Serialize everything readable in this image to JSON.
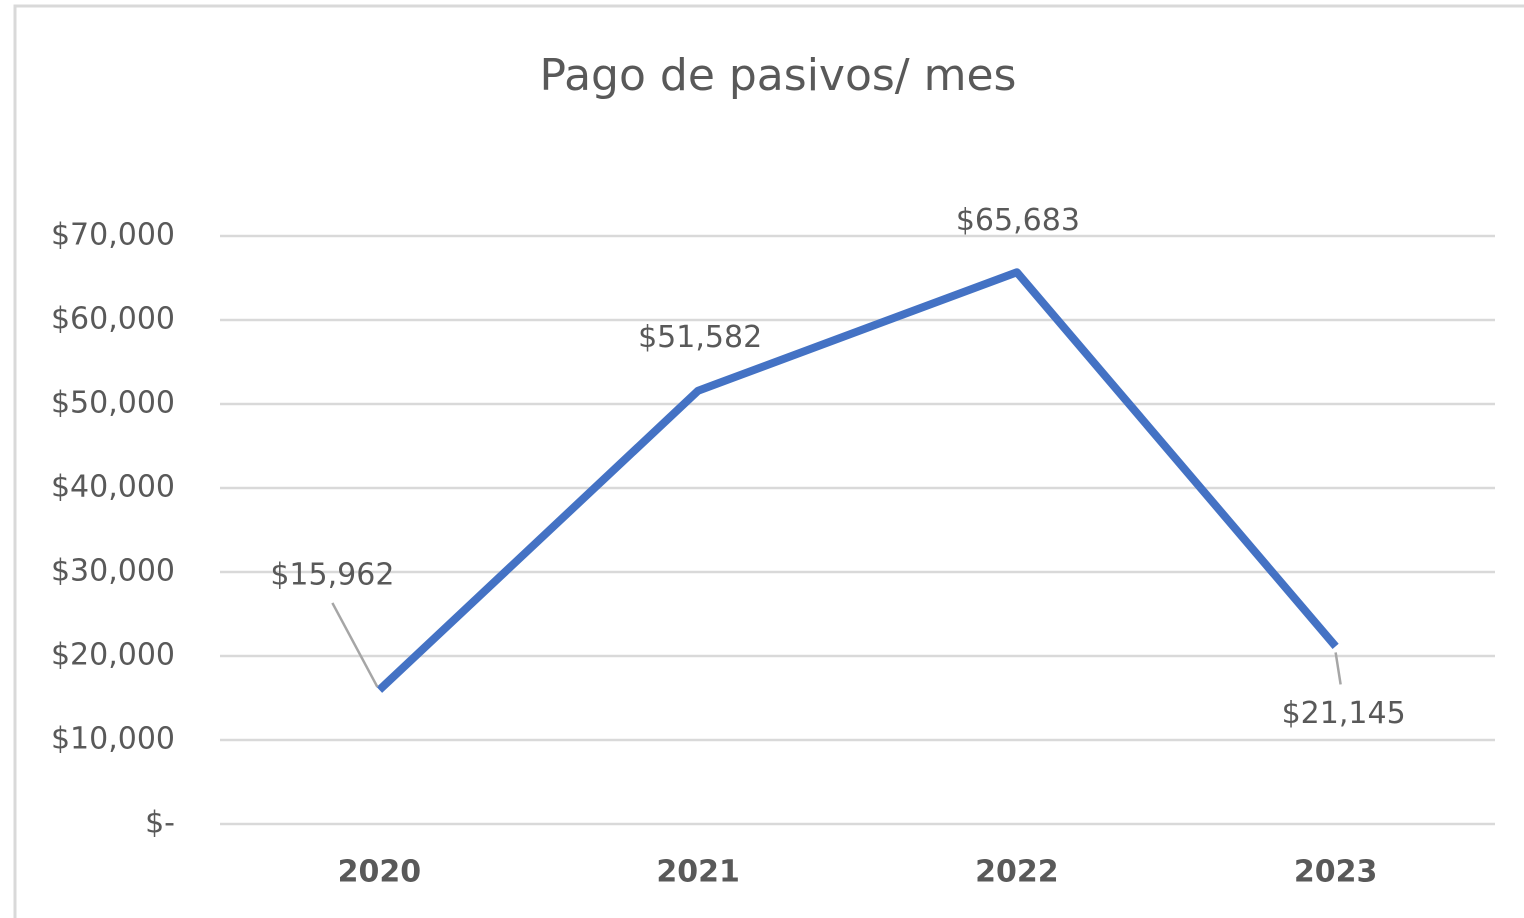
{
  "chart_data": {
    "type": "line",
    "title": "Pago de pasivos/ mes",
    "categories": [
      "2020",
      "2021",
      "2022",
      "2023"
    ],
    "series": [
      {
        "name": "Pago de pasivos/ mes",
        "color": "#4472c4",
        "values": [
          15962,
          51582,
          65683,
          21145
        ],
        "value_labels": [
          "$15,962",
          "$51,582",
          "$65,683",
          "$21,145"
        ]
      }
    ],
    "ylim": [
      0,
      70000
    ],
    "yticks": [
      {
        "value": 0,
        "label": "$-"
      },
      {
        "value": 10000,
        "label": "$10,000"
      },
      {
        "value": 20000,
        "label": "$20,000"
      },
      {
        "value": 30000,
        "label": "$30,000"
      },
      {
        "value": 40000,
        "label": "$40,000"
      },
      {
        "value": 50000,
        "label": "$50,000"
      },
      {
        "value": 60000,
        "label": "$60,000"
      },
      {
        "value": 70000,
        "label": "$70,000"
      }
    ],
    "grid": true
  }
}
